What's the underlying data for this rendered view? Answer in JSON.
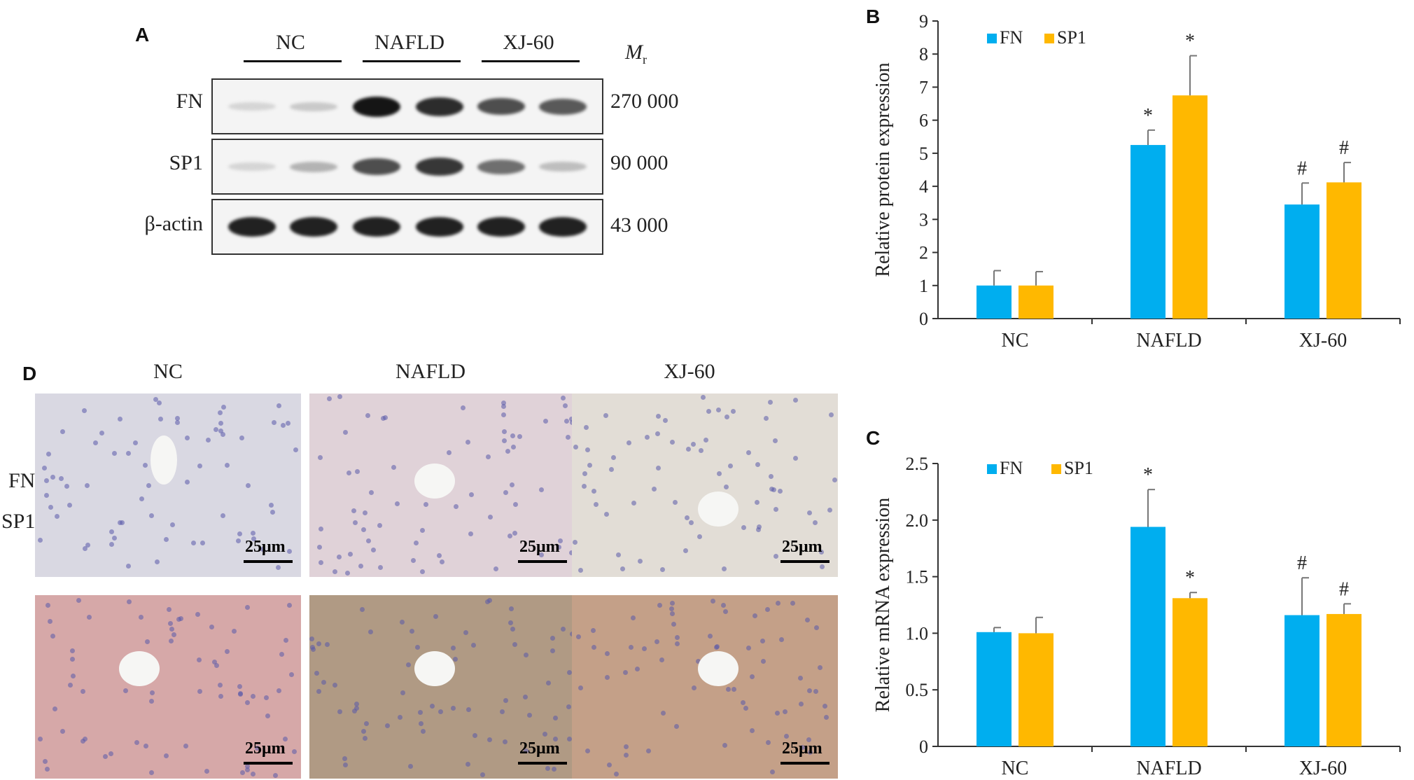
{
  "panel_a": {
    "letter": "A",
    "groups": [
      "NC",
      "NAFLD",
      "XJ-60"
    ],
    "mr_label": "M",
    "mr_sub": "r",
    "rows": [
      {
        "label": "FN",
        "mr": "270 000"
      },
      {
        "label": "SP1",
        "mr": "90 000"
      },
      {
        "label": "β-actin",
        "mr": "43 000"
      }
    ],
    "band_intensity": {
      "FN": [
        0.1,
        0.15,
        0.95,
        0.85,
        0.7,
        0.65
      ],
      "SP1": [
        0.1,
        0.25,
        0.7,
        0.8,
        0.55,
        0.2
      ],
      "β-actin": [
        0.9,
        0.9,
        0.9,
        0.9,
        0.9,
        0.9
      ]
    }
  },
  "panel_b": {
    "letter": "B",
    "legend": [
      "FN",
      "SP1"
    ],
    "colors": {
      "FN": "#00aeef",
      "SP1": "#ffb800"
    },
    "chart_data": {
      "type": "bar",
      "categories": [
        "NC",
        "NAFLD",
        "XJ-60"
      ],
      "series": [
        {
          "name": "FN",
          "values": [
            1.0,
            5.25,
            3.45
          ],
          "errors": [
            0.45,
            0.45,
            0.65
          ]
        },
        {
          "name": "SP1",
          "values": [
            1.0,
            6.75,
            4.12
          ],
          "errors": [
            0.42,
            1.2,
            0.6
          ]
        }
      ],
      "ylabel": "Relative protein expression",
      "ylim": [
        0,
        9
      ],
      "yticks": [
        "0",
        "1",
        "2",
        "3",
        "4",
        "5",
        "6",
        "7",
        "8",
        "9"
      ],
      "annotations": [
        {
          "series": "FN",
          "category": "NAFLD",
          "text": "*"
        },
        {
          "series": "SP1",
          "category": "NAFLD",
          "text": "*"
        },
        {
          "series": "FN",
          "category": "XJ-60",
          "text": "#"
        },
        {
          "series": "SP1",
          "category": "XJ-60",
          "text": "#"
        }
      ]
    }
  },
  "panel_c": {
    "letter": "C",
    "legend": [
      "FN",
      "SP1"
    ],
    "colors": {
      "FN": "#00aeef",
      "SP1": "#ffb800"
    },
    "chart_data": {
      "type": "bar",
      "categories": [
        "NC",
        "NAFLD",
        "XJ-60"
      ],
      "series": [
        {
          "name": "FN",
          "values": [
            1.01,
            1.94,
            1.16
          ],
          "errors": [
            0.04,
            0.33,
            0.33
          ]
        },
        {
          "name": "SP1",
          "values": [
            1.0,
            1.31,
            1.17
          ],
          "errors": [
            0.14,
            0.05,
            0.09
          ]
        }
      ],
      "ylabel": "Relative mRNA expression",
      "ylim": [
        0,
        2.5
      ],
      "yticks": [
        "0",
        "0.5",
        "1.0",
        "1.5",
        "2.0",
        "2.5"
      ],
      "annotations": [
        {
          "series": "FN",
          "category": "NAFLD",
          "text": "*"
        },
        {
          "series": "SP1",
          "category": "NAFLD",
          "text": "*"
        },
        {
          "series": "FN",
          "category": "XJ-60",
          "text": "#"
        },
        {
          "series": "SP1",
          "category": "XJ-60",
          "text": "#"
        }
      ]
    }
  },
  "panel_d": {
    "letter": "D",
    "columns": [
      "NC",
      "NAFLD",
      "XJ-60"
    ],
    "rows": [
      "FN",
      "SP1"
    ],
    "scale_label": "25μm",
    "tissue_colors": {
      "FN": [
        "#d9d8e2",
        "#e0d2d8",
        "#e2ddd6"
      ],
      "SP1": [
        "#d6a8a8",
        "#b09a84",
        "#c4a088"
      ]
    }
  }
}
